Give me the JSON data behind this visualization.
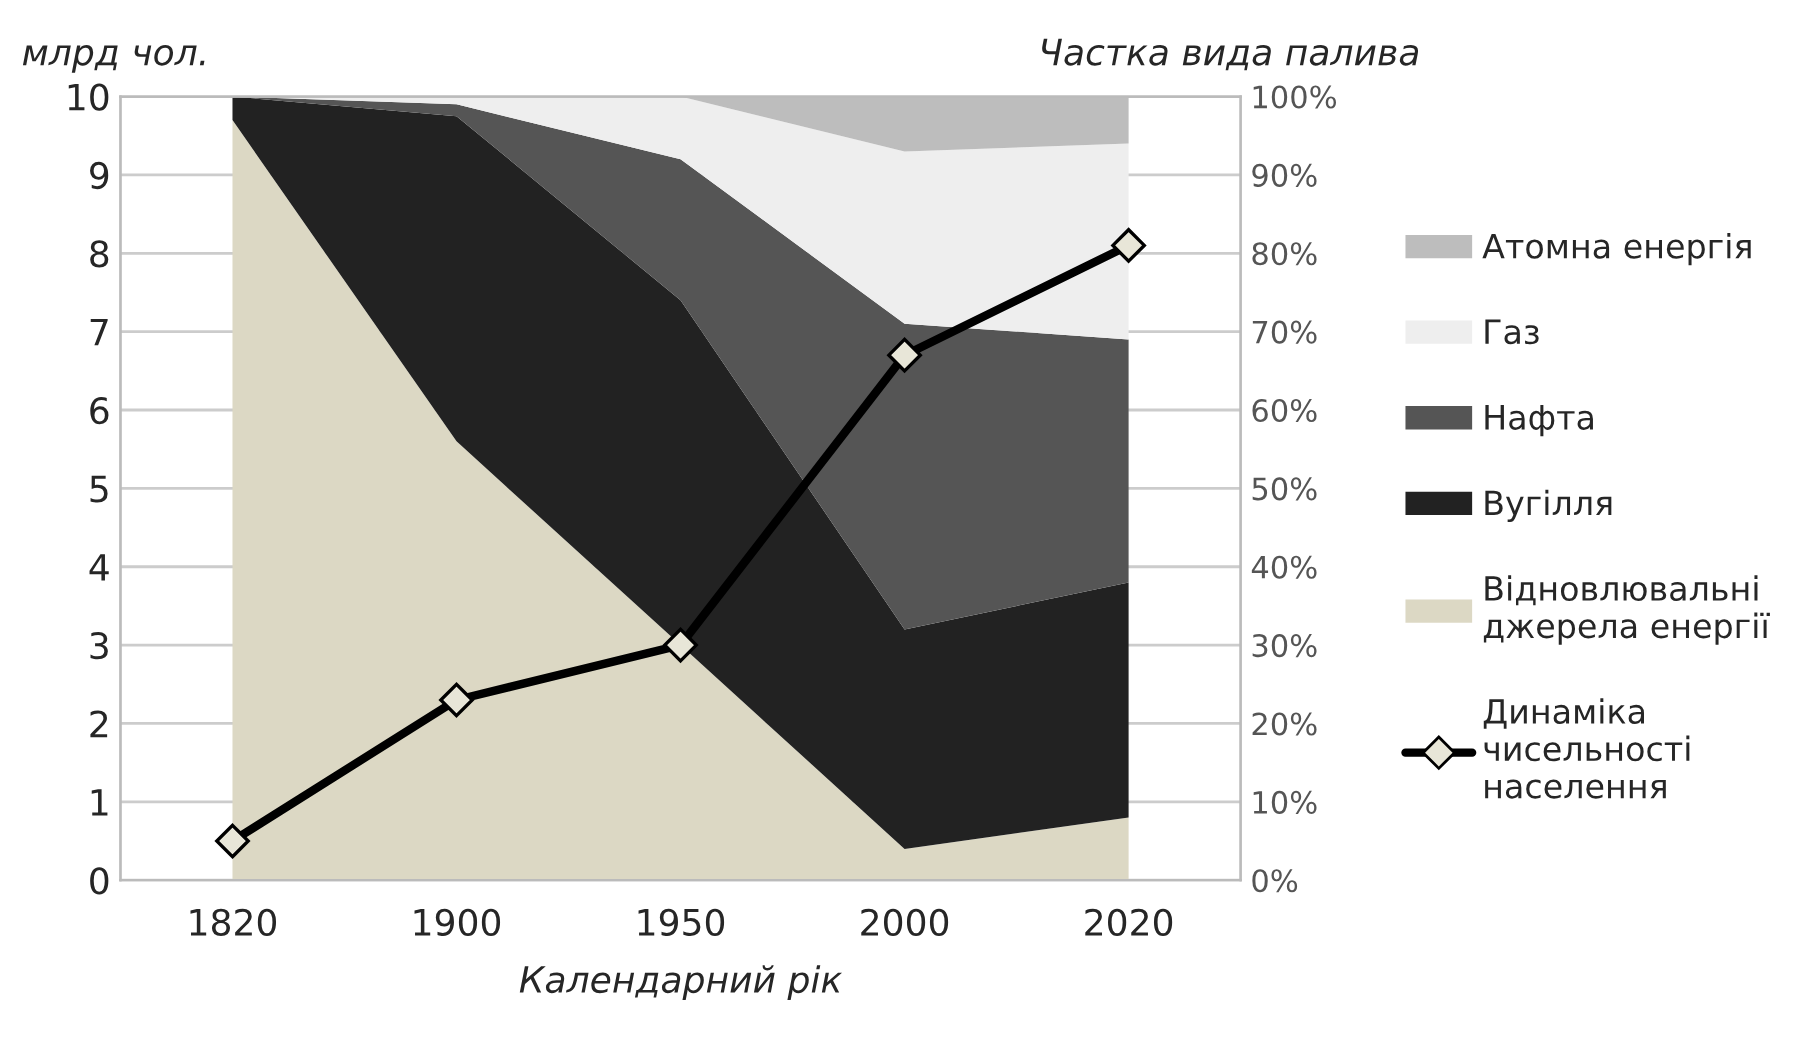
{
  "chart_data": {
    "type": "area",
    "stacked": true,
    "xlabel": "Календарний рік",
    "ylabel": "млрд чол.",
    "y2label": "Частка вида палива",
    "categories": [
      "1820",
      "1900",
      "1950",
      "2000",
      "2020"
    ],
    "series": [
      {
        "name": "Відновлювальні\nджерела енергії",
        "color": "#dcd8c4",
        "axis": "y2",
        "values": [
          97,
          56,
          30,
          4,
          8
        ]
      },
      {
        "name": "Вугілля",
        "color": "#222222",
        "axis": "y2",
        "values": [
          3,
          41.5,
          44,
          28,
          30
        ]
      },
      {
        "name": "Нафта",
        "color": "#555555",
        "axis": "y2",
        "values": [
          0,
          1.5,
          18,
          39,
          31
        ]
      },
      {
        "name": "Газ",
        "color": "#eeeeee",
        "axis": "y2",
        "values": [
          0,
          1,
          8,
          22,
          25
        ]
      },
      {
        "name": "Атомна енергія",
        "color": "#bdbdbd",
        "axis": "y2",
        "values": [
          0,
          0,
          0,
          7,
          6
        ]
      },
      {
        "name": "Динаміка\nчисельності\nнаселення",
        "type": "line",
        "color": "#000000",
        "marker": "diamond",
        "values": [
          0.5,
          2.3,
          3.0,
          6.7,
          8.1
        ]
      }
    ],
    "ylim": [
      0,
      10
    ],
    "yticks": [
      0,
      1,
      2,
      3,
      4,
      5,
      6,
      7,
      8,
      9,
      10
    ],
    "y2lim": [
      0,
      100
    ],
    "y2ticks": [
      {
        "value": 0,
        "label": "0%"
      },
      {
        "value": 10,
        "label": "10%"
      },
      {
        "value": 20,
        "label": "20%"
      },
      {
        "value": 30,
        "label": "30%"
      },
      {
        "value": 40,
        "label": "40%"
      },
      {
        "value": 50,
        "label": "50%"
      },
      {
        "value": 60,
        "label": "60%"
      },
      {
        "value": 70,
        "label": "70%"
      },
      {
        "value": 80,
        "label": "80%"
      },
      {
        "value": 90,
        "label": "90%"
      },
      {
        "value": 100,
        "label": "100%"
      }
    ],
    "grid": "y",
    "legend": "right"
  }
}
